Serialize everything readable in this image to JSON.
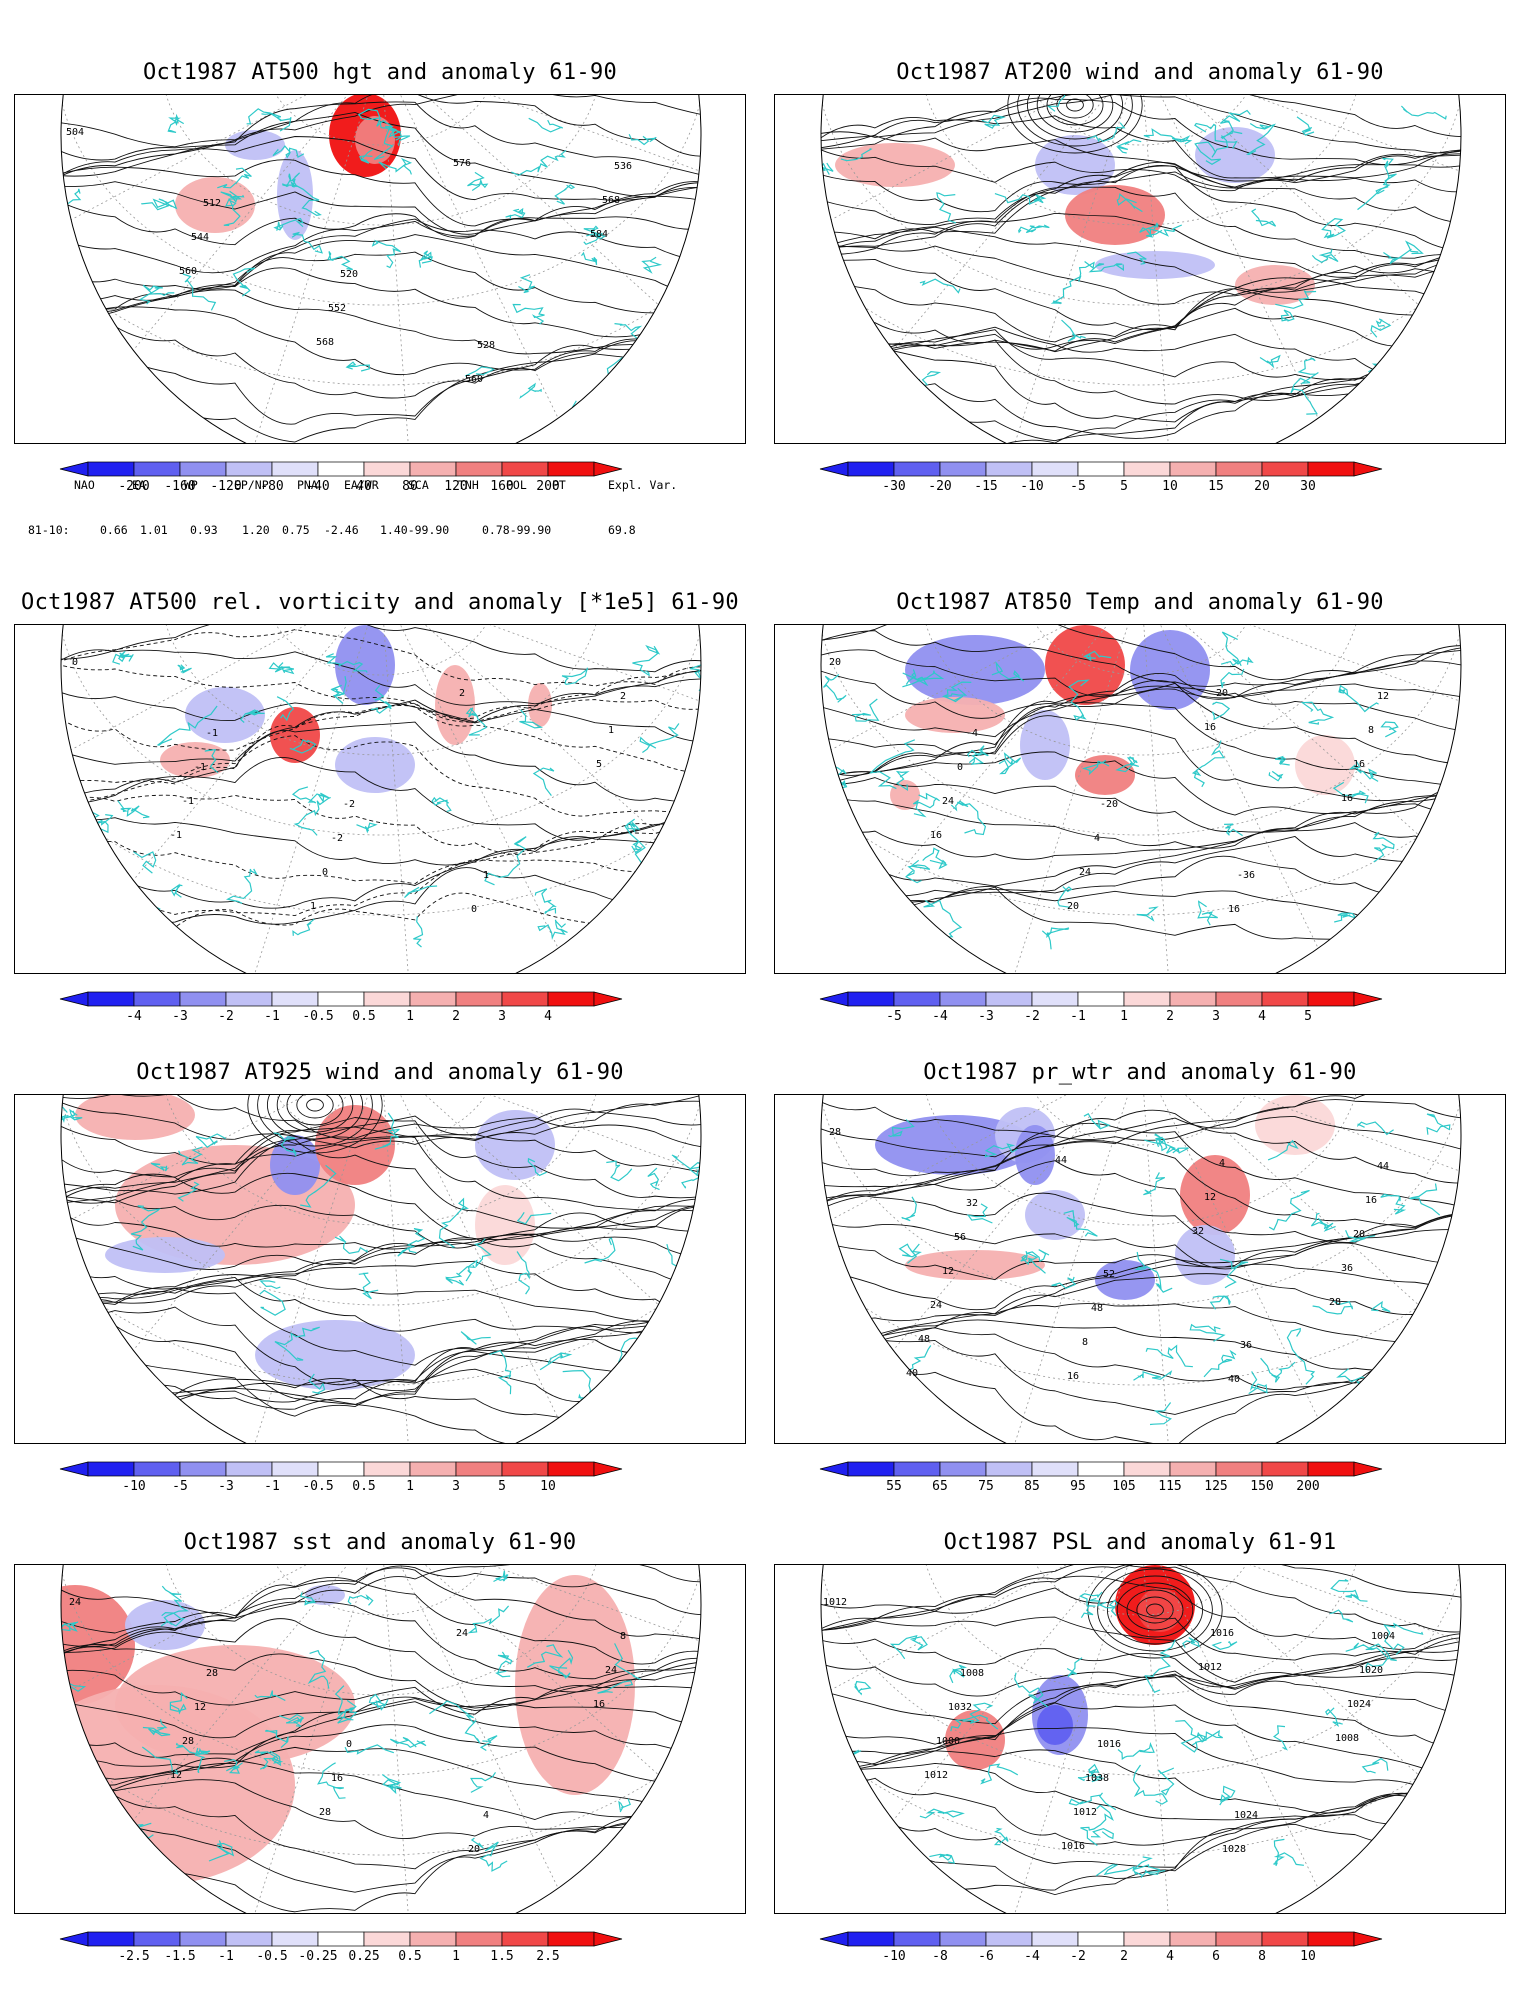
{
  "panels": [
    {
      "id": "hgt500",
      "title": "Oct1987 AT500 hgt and anomaly 61-90",
      "colorbar": [
        "-200",
        "-160",
        "-120",
        "-80",
        "-40",
        "40",
        "80",
        "120",
        "160",
        "200"
      ],
      "contour_labels": [
        "504",
        "512",
        "520",
        "528",
        "536",
        "544",
        "552",
        "560",
        "568",
        "560",
        "568",
        "576",
        "584"
      ]
    },
    {
      "id": "wind200",
      "title": "Oct1987 AT200 wind and anomaly 61-90",
      "colorbar": [
        "-30",
        "-20",
        "-15",
        "-10",
        "-5",
        "5",
        "10",
        "15",
        "20",
        "30"
      ],
      "contour_labels": []
    },
    {
      "id": "vort500",
      "title": "Oct1987 AT500 rel. vorticity and anomaly [*1e5] 61-90",
      "colorbar": [
        "-4",
        "-3",
        "-2",
        "-1",
        "-0.5",
        "0.5",
        "1",
        "2",
        "3",
        "4"
      ],
      "contour_labels": [
        "0",
        "-1",
        "-2",
        "1",
        "2",
        "-1",
        "-2",
        "0",
        "1",
        "-1",
        "0",
        "2",
        "5",
        "-1",
        "1"
      ]
    },
    {
      "id": "temp850",
      "title": "Oct1987 AT850 Temp and anomaly 61-90",
      "colorbar": [
        "-5",
        "-4",
        "-3",
        "-2",
        "-1",
        "1",
        "2",
        "3",
        "4",
        "5"
      ],
      "contour_labels": [
        "20",
        "-4",
        "-20",
        "-36",
        "12",
        "0",
        "4",
        "16",
        "8",
        "24",
        "24",
        "20",
        "16",
        "16",
        "20",
        "16",
        "16"
      ]
    },
    {
      "id": "wind925",
      "title": "Oct1987 AT925 wind and anomaly 61-90",
      "colorbar": [
        "-10",
        "-5",
        "-3",
        "-1",
        "-0.5",
        "0.5",
        "1",
        "3",
        "5",
        "10"
      ],
      "contour_labels": []
    },
    {
      "id": "prwtr",
      "title": "Oct1987 pr_wtr and anomaly 61-90",
      "colorbar": [
        "55",
        "65",
        "75",
        "85",
        "95",
        "105",
        "115",
        "125",
        "150",
        "200"
      ],
      "contour_labels": [
        "28",
        "32",
        "52",
        "36",
        "44",
        "56",
        "48",
        "40",
        "16",
        "12",
        "8",
        "4",
        "20",
        "24",
        "16",
        "12",
        "36",
        "48",
        "44",
        "32",
        "28",
        "40"
      ]
    },
    {
      "id": "sst",
      "title": "Oct1987 sst and anomaly 61-90",
      "colorbar": [
        "-2.5",
        "-1.5",
        "-1",
        "-0.5",
        "-0.25",
        "0.25",
        "0.5",
        "1",
        "1.5",
        "2.5"
      ],
      "contour_labels": [
        "24",
        "28",
        "0",
        "4",
        "8",
        "12",
        "16",
        "20",
        "24",
        "28",
        "28",
        "24",
        "16",
        "12"
      ]
    },
    {
      "id": "psl",
      "title": "Oct1987 PSL and anomaly 61-91",
      "colorbar": [
        "-10",
        "-8",
        "-6",
        "-4",
        "-2",
        "2",
        "4",
        "6",
        "8",
        "10"
      ],
      "contour_labels": [
        "1012",
        "1008",
        "1016",
        "1024",
        "1004",
        "1032",
        "1038",
        "1028",
        "1020",
        "1000",
        "1012",
        "1016",
        "1024",
        "1012",
        "1016",
        "1012",
        "1008"
      ]
    }
  ],
  "indices": {
    "headers": [
      "NAO",
      "EA",
      "WP",
      "EP/NP",
      "PNA",
      "EA/WR",
      "SCA",
      "TNH",
      "POL",
      "PT",
      "Expl. Var."
    ],
    "row_label": "81-10:",
    "values": [
      "0.66",
      "1.01",
      "0.93",
      "1.20",
      "0.75",
      "-2.46",
      "1.40-99.90",
      "0.78-99.90",
      "69.8"
    ]
  },
  "colors": {
    "coast": "#2ec9c9",
    "shades": [
      "#2020f0",
      "#6060f0",
      "#9090f0",
      "#c0c0f5",
      "#e0e0fa",
      "#ffffff",
      "#fbd8d8",
      "#f5b0b0",
      "#f08080",
      "#f04848",
      "#f01010"
    ]
  }
}
